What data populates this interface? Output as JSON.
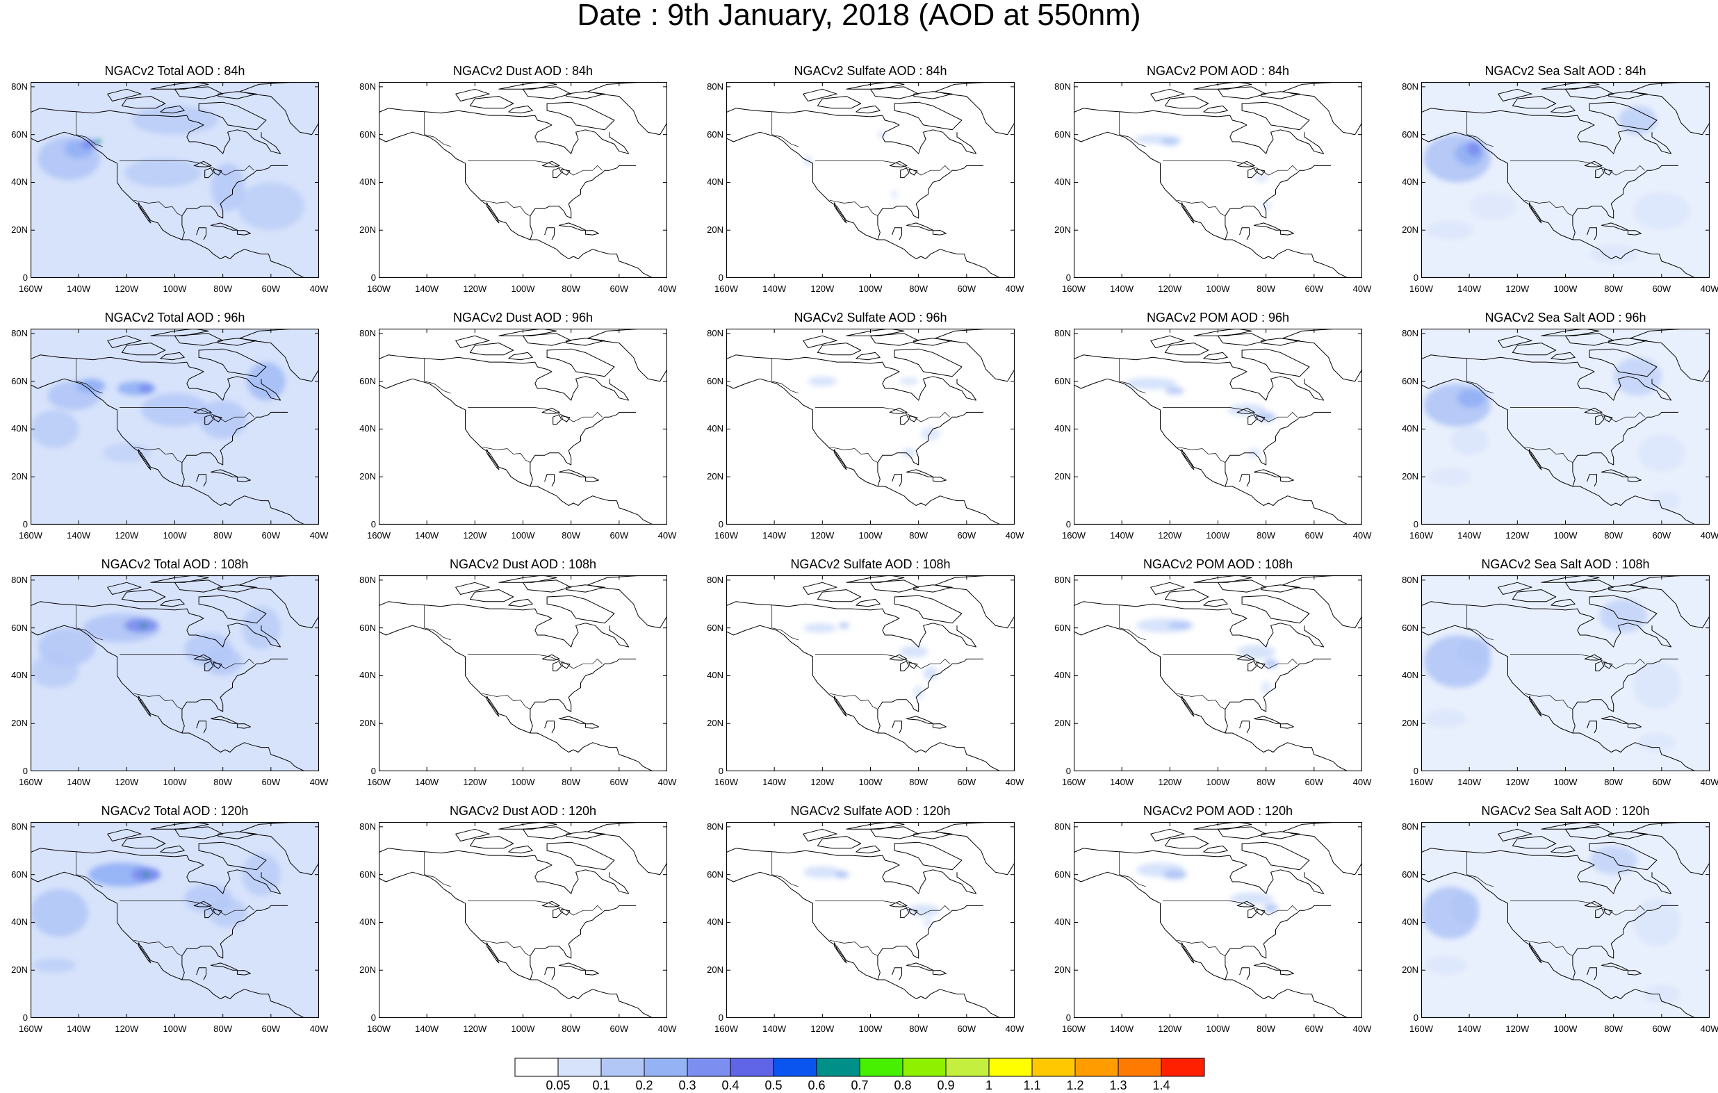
{
  "title": "Date : 9th January, 2018 (AOD at 550nm)",
  "panels": [
    [
      {
        "title": "NGACv2 Total AOD : 84h",
        "field": "total",
        "hour": 84
      },
      {
        "title": "NGACv2 Dust AOD : 84h",
        "field": "dust",
        "hour": 84
      },
      {
        "title": "NGACv2 Sulfate AOD : 84h",
        "field": "sulfate",
        "hour": 84
      },
      {
        "title": "NGACv2 POM AOD : 84h",
        "field": "pom",
        "hour": 84
      },
      {
        "title": "NGACv2 Sea Salt AOD : 84h",
        "field": "seasalt",
        "hour": 84
      }
    ],
    [
      {
        "title": "NGACv2 Total AOD : 96h",
        "field": "total",
        "hour": 96
      },
      {
        "title": "NGACv2 Dust AOD : 96h",
        "field": "dust",
        "hour": 96
      },
      {
        "title": "NGACv2 Sulfate AOD : 96h",
        "field": "sulfate",
        "hour": 96
      },
      {
        "title": "NGACv2 POM AOD : 96h",
        "field": "pom",
        "hour": 96
      },
      {
        "title": "NGACv2 Sea Salt AOD : 96h",
        "field": "seasalt",
        "hour": 96
      }
    ],
    [
      {
        "title": "NGACv2 Total AOD : 108h",
        "field": "total",
        "hour": 108
      },
      {
        "title": "NGACv2 Dust AOD : 108h",
        "field": "dust",
        "hour": 108
      },
      {
        "title": "NGACv2 Sulfate AOD : 108h",
        "field": "sulfate",
        "hour": 108
      },
      {
        "title": "NGACv2 POM AOD : 108h",
        "field": "pom",
        "hour": 108
      },
      {
        "title": "NGACv2 Sea Salt AOD : 108h",
        "field": "seasalt",
        "hour": 108
      }
    ],
    [
      {
        "title": "NGACv2 Total AOD : 120h",
        "field": "total",
        "hour": 120
      },
      {
        "title": "NGACv2 Dust AOD : 120h",
        "field": "dust",
        "hour": 120
      },
      {
        "title": "NGACv2 Sulfate AOD : 120h",
        "field": "sulfate",
        "hour": 120
      },
      {
        "title": "NGACv2 POM AOD : 120h",
        "field": "pom",
        "hour": 120
      },
      {
        "title": "NGACv2 Sea Salt  AOD : 120h",
        "field": "seasalt",
        "hour": 120
      }
    ]
  ],
  "lat_ticks": [
    "0",
    "20N",
    "40N",
    "60N",
    "80N"
  ],
  "lon_ticks": [
    "160W",
    "140W",
    "120W",
    "100W",
    "80W",
    "60W",
    "40W"
  ],
  "colorbar": {
    "colors": [
      "#ffffff",
      "#d7e3fb",
      "#b3c7f7",
      "#95b2f5",
      "#7c8ff0",
      "#5f65e6",
      "#0a55f0",
      "#00908a",
      "#46f000",
      "#8ff000",
      "#c5ef3e",
      "#ffff00",
      "#ffc800",
      "#ff9d00",
      "#ff7a00",
      "#ff2000"
    ],
    "labels": [
      "0.05",
      "0.1",
      "0.2",
      "0.3",
      "0.4",
      "0.5",
      "0.6",
      "0.7",
      "0.8",
      "0.9",
      "1",
      "1.1",
      "1.2",
      "1.3",
      "1.4"
    ]
  }
}
